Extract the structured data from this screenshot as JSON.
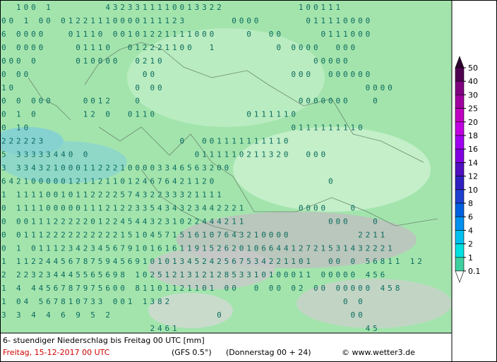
{
  "map": {
    "rows": [
      "  100 1       4323311110013322          100111",
      "00 1 00 01221110000111123      0000      011110000",
      "6 0000   01110 00101221111000    0  00     0111000",
      "0 0000    01110  012221100  1        0 0000  000",
      "000 0     010000  0210                    00000",
      "0 00               00                  000  000000",
      "10                0 00                           0000",
      "0 0 000    0012   0                     0000000   0",
      "0 1 0      12 0  0110            0111110",
      "0 10                                   0111111110",
      "222223                  0  001111111110",
      "5 33333440 0              0111110211320  000",
      "3 33432100011222100003346563200",
      "64210000012112110124676421120               0",
      "1 1111001011222257432233321111",
      "0 1111000001112122335434323442221       0000   0",
      "0 0011122222012245443231022444211           000   0",
      "0 0111222222222215104571516107643210000         2211",
      "0 1 0111234234567910161611915262010664412721531432221",
      "1 1122445678759456910101345242567534221101  00 0 56811 12",
      "2 223234445565698 102512131212853310100011 00000 456",
      "1 4 4456787975600 81101121101 00  0 00 02 00 00000 458",
      "1 04 567810733 001 1382                       0 0",
      "3 3 4 4 6 9 5 2              0                 00",
      "                    2461                         45"
    ],
    "legend": {
      "levels": [
        {
          "value": 50,
          "color": "#300030"
        },
        {
          "value": 40,
          "color": "#500050"
        },
        {
          "value": 30,
          "color": "#800080"
        },
        {
          "value": 25,
          "color": "#a000a0"
        },
        {
          "value": 20,
          "color": "#c000c0"
        },
        {
          "value": 18,
          "color": "#c000e0"
        },
        {
          "value": 16,
          "color": "#a000f0"
        },
        {
          "value": 14,
          "color": "#8000e0"
        },
        {
          "value": 12,
          "color": "#5010c0"
        },
        {
          "value": 10,
          "color": "#3020c0"
        },
        {
          "value": 8,
          "color": "#2040d0"
        },
        {
          "value": 6,
          "color": "#0060e0"
        },
        {
          "value": 4,
          "color": "#0090f0"
        },
        {
          "value": 2,
          "color": "#00c0f0"
        },
        {
          "value": 1,
          "color": "#00e0e0"
        },
        {
          "value": 0.1,
          "color": "#40d0a0"
        }
      ]
    },
    "footer": {
      "title": "6- stuendiger Niederschlag bis Freitag 00 UTC [mm]",
      "date": "Freitag, 15-12-2017  00 UTC",
      "model": "(GFS 0.5°)",
      "run": "(Donnerstag 00 + 24)",
      "credit": "© www.wetter3.de"
    }
  }
}
